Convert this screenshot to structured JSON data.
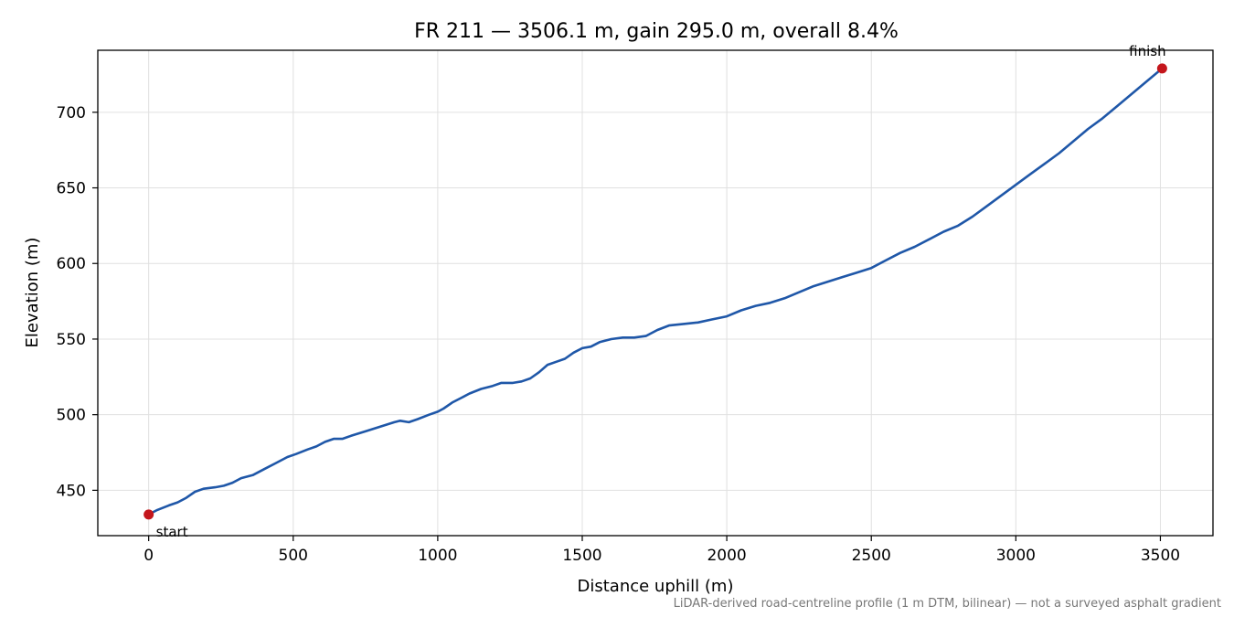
{
  "chart_data": {
    "type": "line",
    "title": "FR 211 — 3506.1 m, gain 295.0 m, overall 8.4%",
    "xlabel": "Distance uphill (m)",
    "ylabel": "Elevation (m)",
    "footnote": "LiDAR-derived road-centreline profile (1 m DTM, bilinear) — not a surveyed asphalt gradient",
    "xlim": [
      -176,
      3682
    ],
    "ylim": [
      420,
      741
    ],
    "xticks": [
      0,
      500,
      1000,
      1500,
      2000,
      2500,
      3000,
      3500
    ],
    "yticks": [
      450,
      500,
      550,
      600,
      650,
      700
    ],
    "grid": true,
    "colors": {
      "line": "#1f57a8",
      "marker": "#c4161c",
      "grid": "#e0e0e0"
    },
    "series": [
      {
        "x": [
          0,
          30,
          70,
          100,
          130,
          160,
          190,
          230,
          260,
          290,
          320,
          360,
          400,
          440,
          480,
          510,
          550,
          580,
          610,
          640,
          670,
          700,
          750,
          800,
          850,
          870,
          900,
          930,
          970,
          1000,
          1020,
          1050,
          1080,
          1110,
          1150,
          1190,
          1220,
          1260,
          1290,
          1320,
          1350,
          1380,
          1410,
          1440,
          1470,
          1500,
          1530,
          1560,
          1600,
          1640,
          1680,
          1720,
          1760,
          1800,
          1850,
          1900,
          1950,
          2000,
          2050,
          2100,
          2150,
          2200,
          2250,
          2300,
          2350,
          2400,
          2450,
          2500,
          2550,
          2600,
          2650,
          2700,
          2750,
          2800,
          2850,
          2900,
          2950,
          3000,
          3050,
          3100,
          3150,
          3200,
          3250,
          3300,
          3350,
          3400,
          3450,
          3506.1
        ],
        "values": [
          434,
          437,
          440,
          442,
          445,
          449,
          451,
          452,
          453,
          455,
          458,
          460,
          464,
          468,
          472,
          474,
          477,
          479,
          482,
          484,
          484,
          486,
          489,
          492,
          495,
          496,
          495,
          497,
          500,
          502,
          504,
          508,
          511,
          514,
          517,
          519,
          521,
          521,
          522,
          524,
          528,
          533,
          535,
          537,
          541,
          544,
          545,
          548,
          550,
          551,
          551,
          552,
          556,
          559,
          560,
          561,
          563,
          565,
          569,
          572,
          574,
          577,
          581,
          585,
          588,
          591,
          594,
          597,
          602,
          607,
          611,
          616,
          621,
          625,
          631,
          638,
          645,
          652,
          659,
          666,
          673,
          681,
          689,
          696,
          704,
          712,
          720,
          729
        ]
      }
    ],
    "annotations": [
      {
        "label": "start",
        "x": 0,
        "y": 434
      },
      {
        "label": "finish",
        "x": 3506.1,
        "y": 729
      }
    ]
  }
}
